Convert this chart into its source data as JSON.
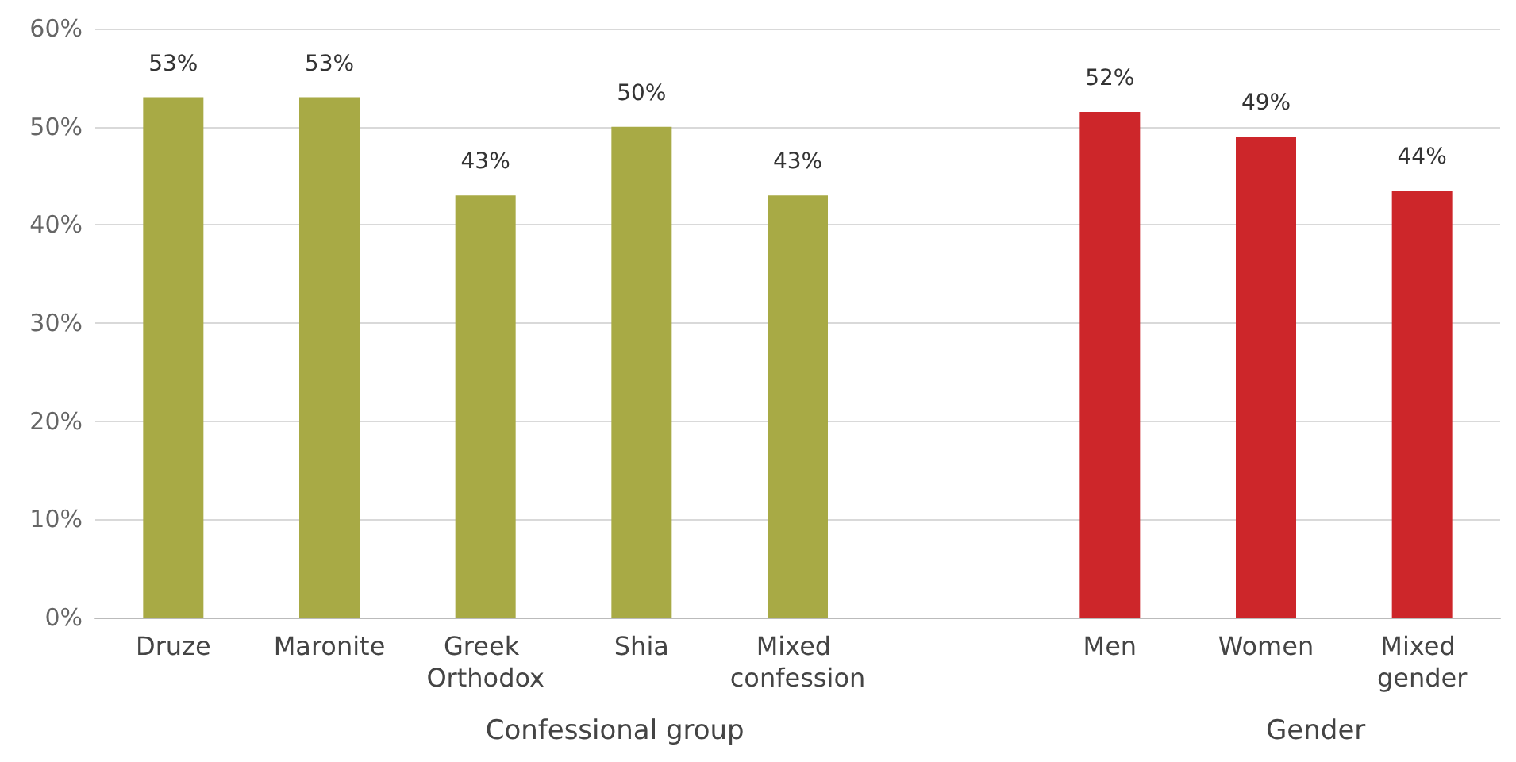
{
  "chart_data": {
    "type": "bar",
    "categories": [
      "Druze",
      "Maronite",
      "Greek Orthodox",
      "Shia",
      "Mixed confession",
      null,
      "Men",
      "Women",
      "Mixed gender"
    ],
    "values": [
      53,
      53,
      43,
      50,
      43,
      null,
      51.5,
      49,
      43.5
    ],
    "colors": [
      "#a8aa45",
      "#a8aa45",
      "#a8aa45",
      "#a8aa45",
      "#a8aa45",
      null,
      "#cd262a",
      "#cd262a",
      "#cd262a"
    ],
    "value_labels": [
      "53%",
      "53%",
      "43%",
      "50%",
      "43%",
      null,
      "52%",
      "49%",
      "44%"
    ],
    "ylim": [
      0,
      60
    ],
    "yticks": [
      {
        "value": 0,
        "label": "0%"
      },
      {
        "value": 10,
        "label": "10%"
      },
      {
        "value": 20,
        "label": "20%"
      },
      {
        "value": 30,
        "label": "30%"
      },
      {
        "value": 40,
        "label": "40%"
      },
      {
        "value": 50,
        "label": "50%"
      },
      {
        "value": 60,
        "label": "60%"
      }
    ],
    "grid": "y",
    "annotations": [
      "Confessional group",
      "Gender"
    ]
  }
}
